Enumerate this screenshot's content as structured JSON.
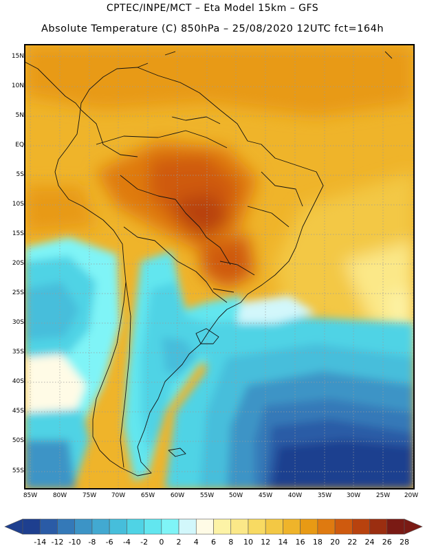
{
  "header": {
    "line1": "CPTEC/INPE/MCT –  Eta Model 15km – GFS",
    "line2": "Absolute Temperature (C) 850hPa – 25/08/2020 12UTC fct=164h"
  },
  "map": {
    "region": "South America",
    "lat_labels": [
      "15N",
      "10N",
      "5N",
      "EQ",
      "5S",
      "10S",
      "15S",
      "20S",
      "25S",
      "30S",
      "35S",
      "40S",
      "45S",
      "50S",
      "55S"
    ],
    "lon_labels": [
      "85W",
      "80W",
      "75W",
      "70W",
      "65W",
      "60W",
      "55W",
      "50W",
      "45W",
      "40W",
      "35W",
      "30W",
      "25W",
      "20W"
    ],
    "lat_range": [
      -58,
      16
    ],
    "lon_range": [
      -86,
      -20
    ]
  },
  "colorbar": {
    "labels": [
      "-14",
      "-12",
      "-10",
      "-8",
      "-6",
      "-4",
      "-2",
      "0",
      "2",
      "4",
      "6",
      "8",
      "10",
      "12",
      "14",
      "16",
      "18",
      "20",
      "22",
      "24",
      "26",
      "28"
    ],
    "colors": [
      "#1e3f8f",
      "#2a5ba6",
      "#3479b8",
      "#3c94c6",
      "#42a9d1",
      "#46bedb",
      "#4fd3e5",
      "#62e6ef",
      "#7ff4f7",
      "#d2f7fb",
      "#fffbe6",
      "#fdf3a6",
      "#fbe888",
      "#f8da62",
      "#f3c844",
      "#efb42a",
      "#e89a14",
      "#df7a10",
      "#cf5a0e",
      "#b8420e",
      "#9b2e10",
      "#7a1a14"
    ],
    "under_color": "#1e3f8f",
    "over_color": "#7a1a14"
  }
}
